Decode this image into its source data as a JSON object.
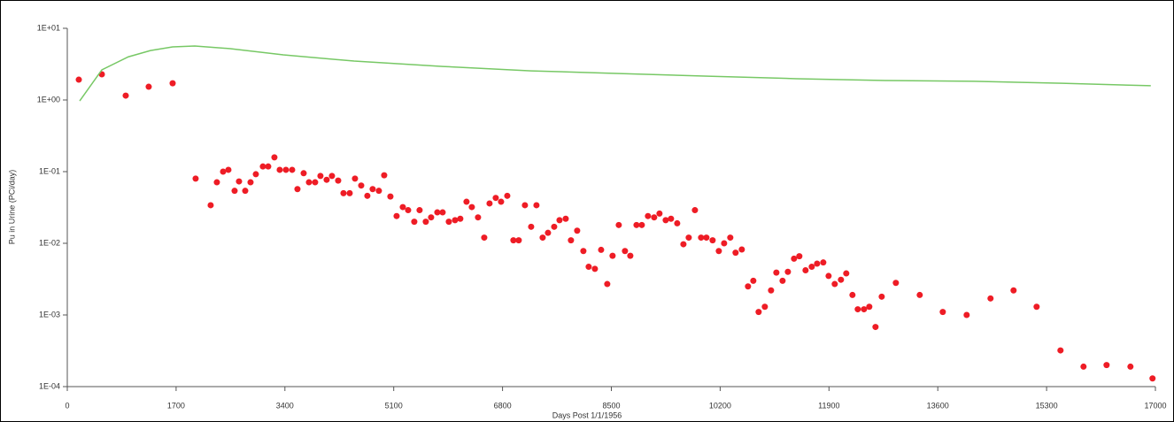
{
  "chart_data": {
    "type": "scatter",
    "xlabel": "Days Post 1/1/1956",
    "ylabel": "Pu in Urine (PCi/day)",
    "xlim": [
      0,
      17000
    ],
    "xticks": [
      0,
      1700,
      3400,
      5100,
      6800,
      8500,
      10200,
      11900,
      13600,
      15300,
      17000
    ],
    "ylim": [
      0.0001,
      10
    ],
    "ylog": true,
    "yticks": [
      {
        "value": 0.0001,
        "label": "1E-04"
      },
      {
        "value": 0.001,
        "label": "1E-03"
      },
      {
        "value": 0.01,
        "label": "1E-02"
      },
      {
        "value": 0.1,
        "label": "1E-01"
      },
      {
        "value": 1,
        "label": "1E+00"
      },
      {
        "value": 10,
        "label": "1E+01"
      }
    ],
    "series": [
      {
        "type": "scatter",
        "color": "#ee1c25",
        "x": [
          180,
          540,
          913,
          1272,
          1646,
          2005,
          2240,
          2337,
          2434,
          2517,
          2614,
          2683,
          2780,
          2863,
          2946,
          3056,
          3139,
          3236,
          3319,
          3416,
          3513,
          3596,
          3693,
          3776,
          3872,
          3955,
          4052,
          4135,
          4232,
          4315,
          4412,
          4495,
          4592,
          4688,
          4771,
          4868,
          4951,
          5048,
          5145,
          5242,
          5325,
          5421,
          5504,
          5601,
          5684,
          5781,
          5864,
          5961,
          6058,
          6140,
          6237,
          6320,
          6417,
          6514,
          6597,
          6694,
          6777,
          6874,
          6970,
          7053,
          7150,
          7247,
          7330,
          7427,
          7510,
          7607,
          7690,
          7787,
          7869,
          7966,
          8063,
          8146,
          8243,
          8340,
          8436,
          8519,
          8616,
          8713,
          8796,
          8893,
          8976,
          9072,
          9169,
          9252,
          9349,
          9432,
          9529,
          9626,
          9709,
          9806,
          9902,
          9985,
          10082,
          10179,
          10262,
          10358,
          10441,
          10538,
          10635,
          10718,
          10801,
          10898,
          10995,
          11078,
          11175,
          11258,
          11354,
          11437,
          11534,
          11631,
          11714,
          11811,
          11894,
          11990,
          12087,
          12170,
          12267,
          12350,
          12447,
          12530,
          12627,
          12724,
          12945,
          13318,
          13678,
          14051,
          14424,
          14784,
          15144,
          15517,
          15877,
          16237,
          16610,
          16955
        ],
        "values": [
          1.92,
          2.28,
          1.15,
          1.53,
          1.71,
          0.08,
          0.034,
          0.071,
          0.1,
          0.106,
          0.054,
          0.073,
          0.054,
          0.071,
          0.092,
          0.118,
          0.118,
          0.158,
          0.106,
          0.106,
          0.106,
          0.057,
          0.095,
          0.071,
          0.071,
          0.087,
          0.077,
          0.087,
          0.075,
          0.05,
          0.05,
          0.08,
          0.064,
          0.046,
          0.057,
          0.054,
          0.089,
          0.045,
          0.024,
          0.032,
          0.029,
          0.02,
          0.029,
          0.02,
          0.023,
          0.027,
          0.027,
          0.02,
          0.021,
          0.022,
          0.038,
          0.032,
          0.023,
          0.012,
          0.036,
          0.043,
          0.038,
          0.046,
          0.011,
          0.011,
          0.034,
          0.017,
          0.034,
          0.012,
          0.014,
          0.017,
          0.021,
          0.022,
          0.011,
          0.015,
          0.0078,
          0.0047,
          0.0044,
          0.0081,
          0.0027,
          0.0067,
          0.018,
          0.0078,
          0.0067,
          0.018,
          0.018,
          0.024,
          0.023,
          0.026,
          0.021,
          0.022,
          0.019,
          0.0097,
          0.012,
          0.029,
          0.012,
          0.012,
          0.011,
          0.0078,
          0.01,
          0.012,
          0.0074,
          0.0082,
          0.0025,
          0.003,
          0.0011,
          0.0013,
          0.0022,
          0.0039,
          0.003,
          0.004,
          0.0061,
          0.0066,
          0.0042,
          0.0047,
          0.0052,
          0.0054,
          0.0035,
          0.0027,
          0.0031,
          0.0038,
          0.0019,
          0.0012,
          0.0012,
          0.0013,
          0.00068,
          0.0018,
          0.0028,
          0.0019,
          0.0011,
          0.001,
          0.0017,
          0.0022,
          0.0013,
          0.00032,
          0.00019,
          0.0002,
          0.00019,
          0.00013
        ]
      },
      {
        "type": "line",
        "color": "#77c865",
        "x": [
          194,
          540,
          954,
          1300,
          1646,
          1992,
          2545,
          3375,
          4481,
          5864,
          7247,
          8630,
          10013,
          11396,
          12779,
          14162,
          15545,
          16928
        ],
        "values": [
          0.97,
          2.63,
          4.0,
          4.9,
          5.5,
          5.66,
          5.2,
          4.26,
          3.49,
          2.94,
          2.55,
          2.34,
          2.15,
          1.98,
          1.87,
          1.82,
          1.71,
          1.58
        ]
      }
    ]
  }
}
